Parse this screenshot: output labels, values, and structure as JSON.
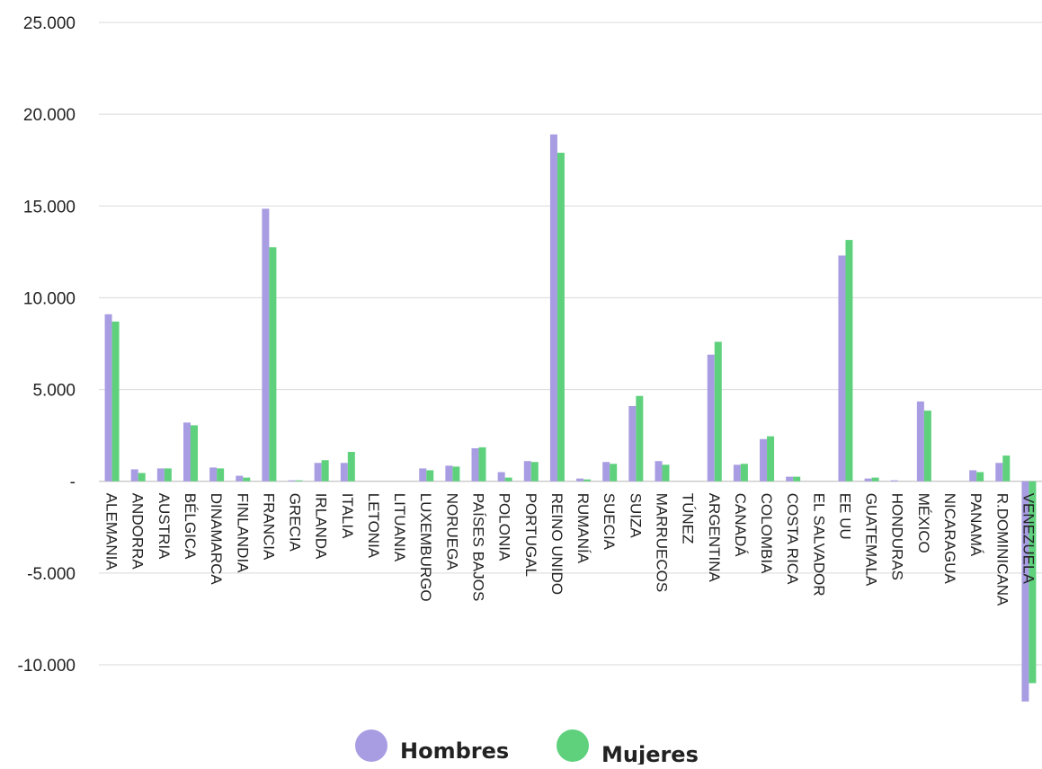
{
  "chart_data": {
    "type": "bar",
    "title": "",
    "xlabel": "",
    "ylabel": "",
    "ylim": [
      -10000,
      25000
    ],
    "yticks": [
      25000,
      20000,
      15000,
      10000,
      5000,
      0,
      -5000,
      -10000
    ],
    "ytick_labels": [
      "25.000",
      "20.000",
      "15.000",
      "10.000",
      "5.000",
      "-",
      "-5.000",
      "-10.000"
    ],
    "grid": true,
    "legend_position": "bottom",
    "categories": [
      "ALEMANIA",
      "ANDORRA",
      "AUSTRIA",
      "BÉLGICA",
      "DINAMARCA",
      "FINLANDIA",
      "FRANCIA",
      "GRECIA",
      "IRLANDA",
      "ITALIA",
      "LETONIA",
      "LITUANIA",
      "LUXEMBURGO",
      "NORUEGA",
      "PAÍSES BAJOS",
      "POLONIA",
      "PORTUGAL",
      "REINO UNIDO",
      "RUMANÍA",
      "SUECIA",
      "SUIZA",
      "MARRUECOS",
      "TÚNEZ",
      "ARGENTINA",
      "CANADÁ",
      "COLOMBIA",
      "COSTA RICA",
      "EL SALVADOR",
      "EE UU",
      "GUATEMALA",
      "HONDURAS",
      "MÉXICO",
      "NICARAGUA",
      "PANAMÁ",
      "R.DOMINICANA",
      "VENEZUELA"
    ],
    "series": [
      {
        "name": "Hombres",
        "color": "#a89de2",
        "values": [
          9100,
          650,
          700,
          3200,
          750,
          300,
          14850,
          50,
          1000,
          1000,
          0,
          0,
          700,
          850,
          1800,
          500,
          1100,
          18900,
          150,
          1050,
          4100,
          1100,
          0,
          6900,
          900,
          2300,
          250,
          0,
          12300,
          150,
          50,
          4350,
          0,
          600,
          1000,
          -12000
        ]
      },
      {
        "name": "Mujeres",
        "color": "#5fd17d",
        "values": [
          8700,
          450,
          700,
          3050,
          700,
          200,
          12750,
          50,
          1150,
          1600,
          0,
          0,
          600,
          800,
          1850,
          200,
          1050,
          17900,
          100,
          950,
          4650,
          900,
          0,
          7600,
          950,
          2450,
          250,
          0,
          13150,
          200,
          0,
          3850,
          0,
          500,
          1400,
          -11000
        ]
      }
    ]
  }
}
